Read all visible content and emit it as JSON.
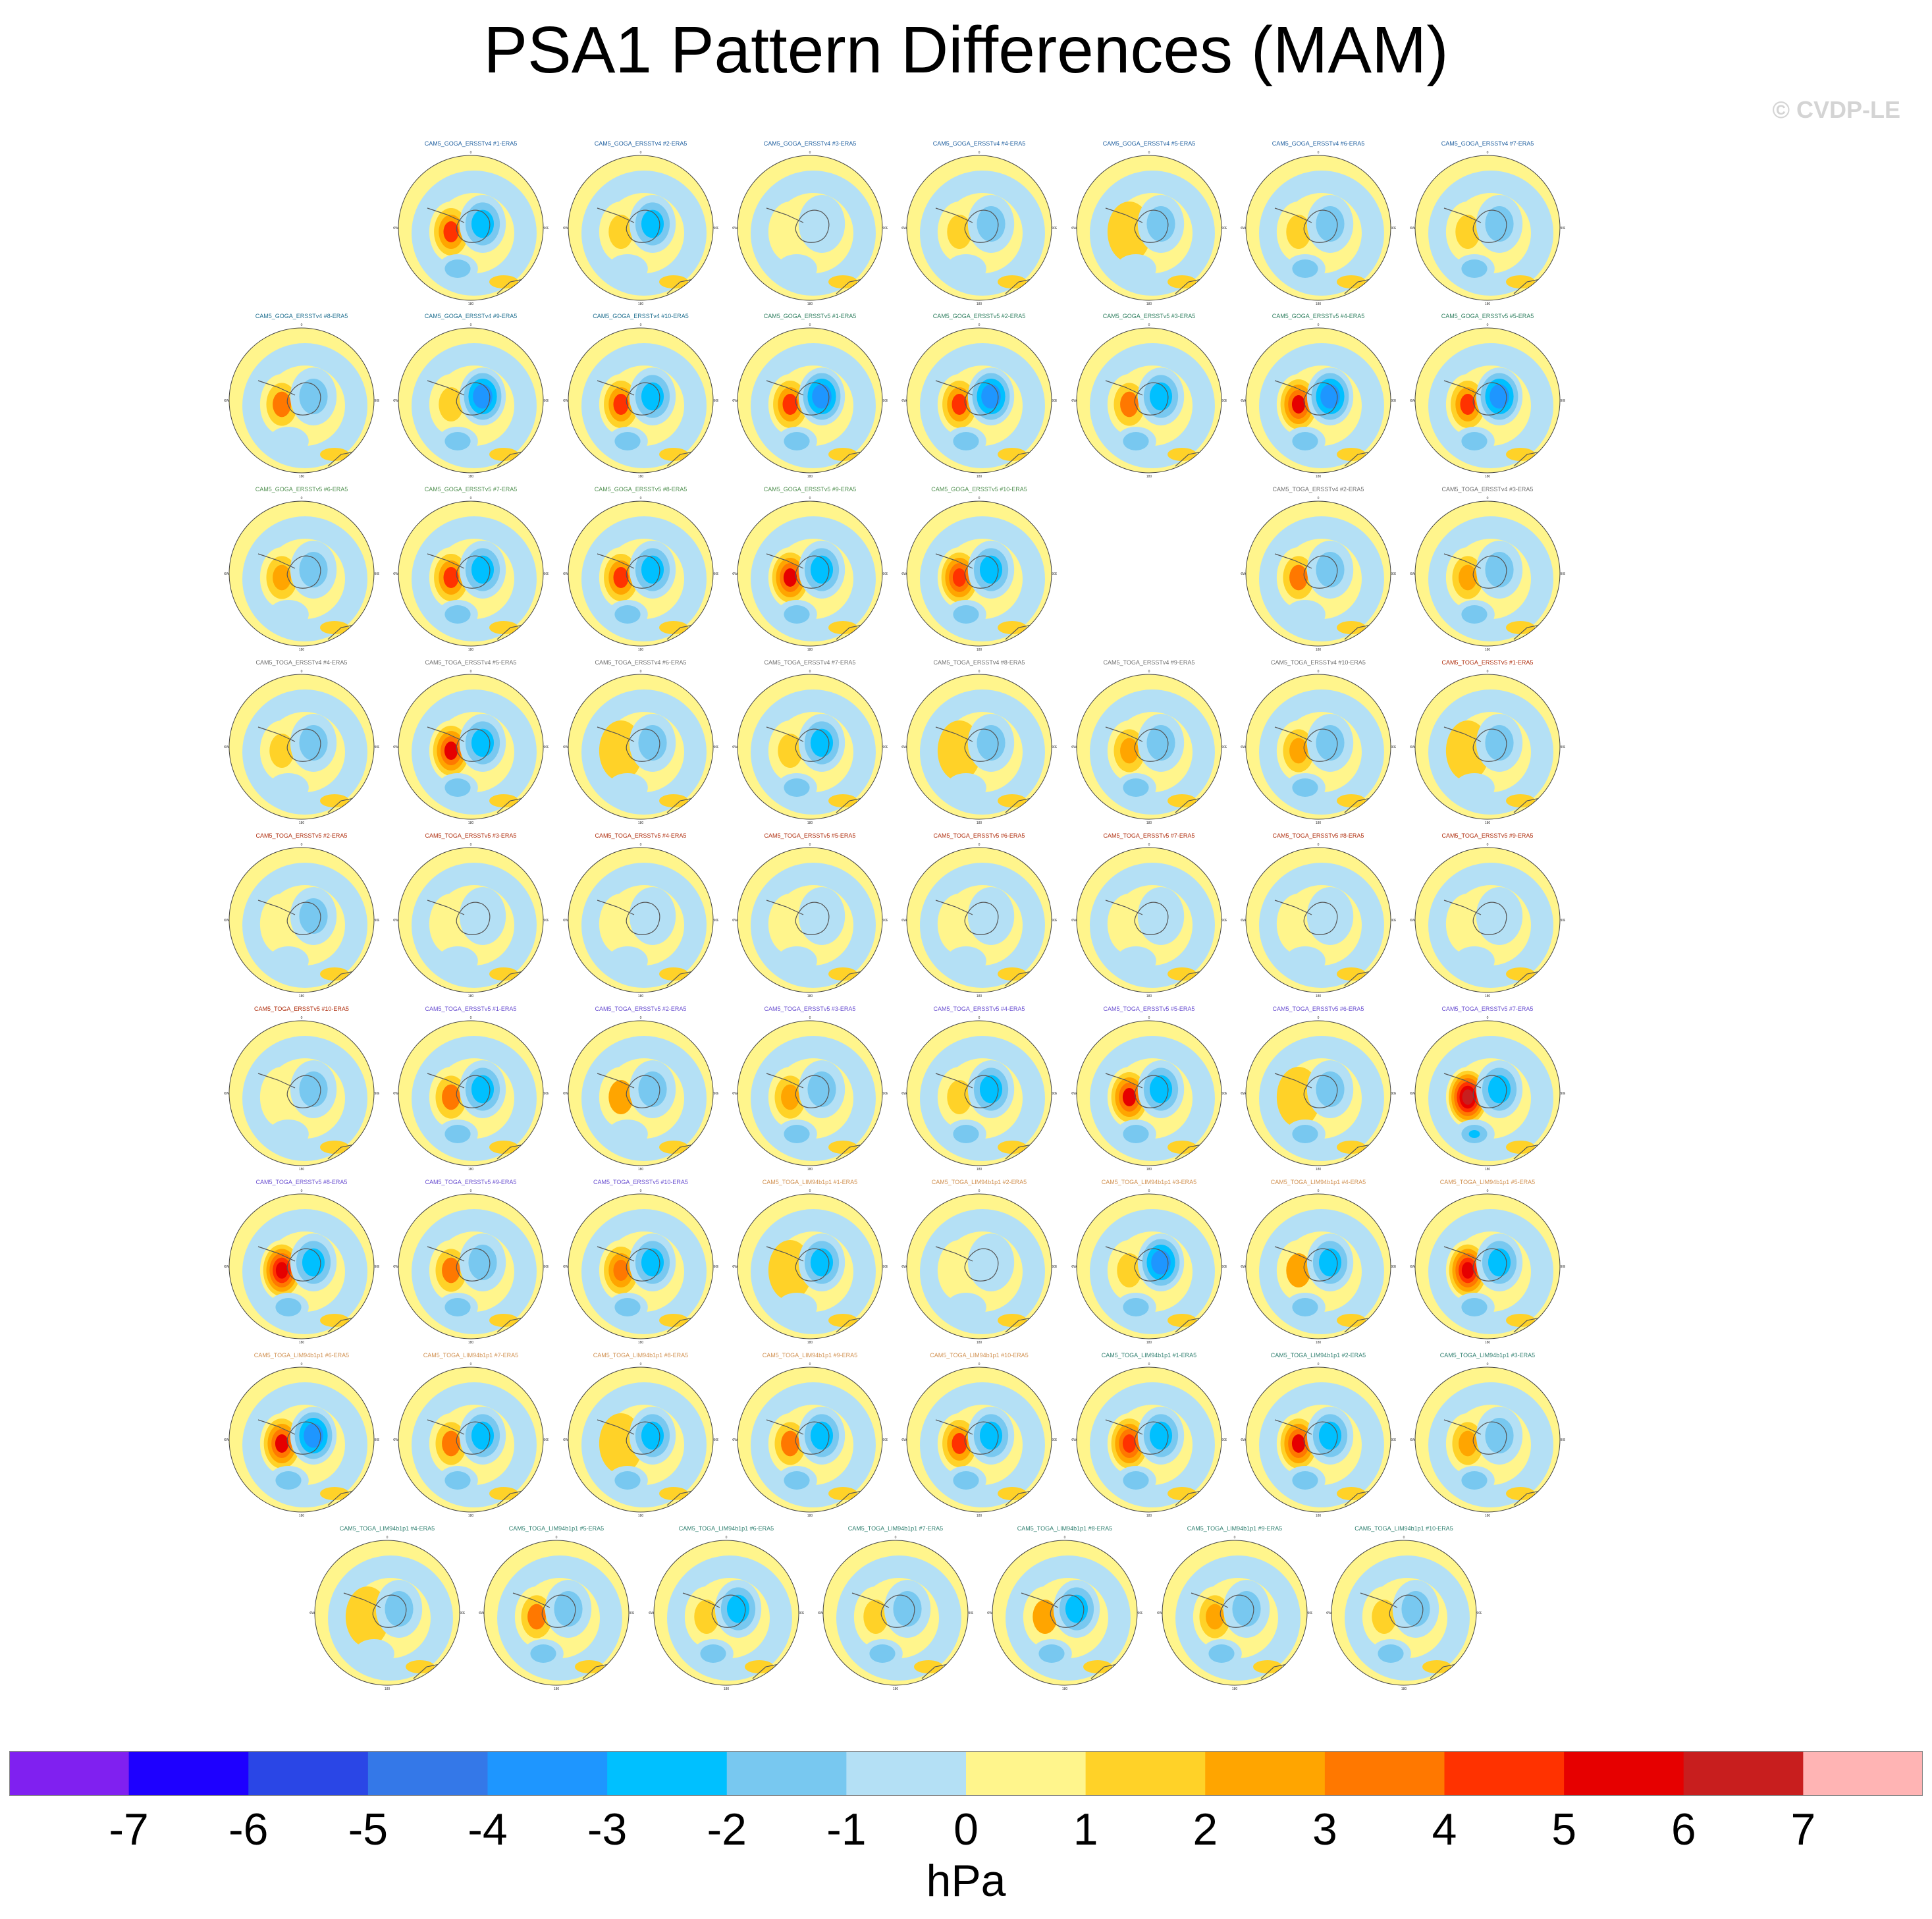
{
  "title": "PSA1 Pattern Differences (MAM)",
  "copyright": "© CVDP-LE",
  "chart_data": {
    "type": "contour-map-panels",
    "title": "PSA1 Pattern Differences (MAM)",
    "units": "hPa",
    "levels": [
      "-7",
      "-6",
      "-5",
      "-4",
      "-3",
      "-2",
      "-1",
      "0",
      "1",
      "2",
      "3",
      "4",
      "5",
      "6",
      "7"
    ],
    "colors": [
      "#8020f0",
      "#1e00ff",
      "#2a46e6",
      "#3478e8",
      "#1e96ff",
      "#00c0ff",
      "#78c8f0",
      "#b4e0f5",
      "#fff58c",
      "#ffd228",
      "#ffa500",
      "#ff7800",
      "#ff3200",
      "#e60000",
      "#c81e1e",
      "#ffb4b4"
    ],
    "grid_labels": [
      "0",
      "30E",
      "60E",
      "90E",
      "120E",
      "150E",
      "180",
      "150W",
      "120W",
      "90W",
      "60W",
      "30W"
    ],
    "panels": [
      {
        "label": "CAM5_GOGA_ERSSTv4 #1-ERA5",
        "color": "#1f5f9f",
        "anom": [
          4,
          -2.5,
          -1.5
        ]
      },
      {
        "label": "CAM5_GOGA_ERSSTv4 #2-ERA5",
        "color": "#1f5f9f",
        "anom": [
          1.5,
          -2.5,
          -1
        ]
      },
      {
        "label": "CAM5_GOGA_ERSSTv4 #3-ERA5",
        "color": "#1f5f9f",
        "anom": [
          0.5,
          -1,
          -1
        ]
      },
      {
        "label": "CAM5_GOGA_ERSSTv4 #4-ERA5",
        "color": "#1f5f9f",
        "anom": [
          1.5,
          -1.5,
          -1
        ]
      },
      {
        "label": "CAM5_GOGA_ERSSTv4 #5-ERA5",
        "color": "#1f5f9f",
        "anom": [
          1,
          -1.5,
          -1
        ]
      },
      {
        "label": "CAM5_GOGA_ERSSTv4 #6-ERA5",
        "color": "#1f5f9f",
        "anom": [
          1.5,
          -2,
          -1.5
        ]
      },
      {
        "label": "CAM5_GOGA_ERSSTv4 #7-ERA5",
        "color": "#1f5f9f",
        "anom": [
          1.5,
          -1.5,
          -1.5
        ]
      },
      {
        "label": "CAM5_GOGA_ERSSTv4 #8-ERA5",
        "color": "#1f6f8f",
        "anom": [
          3,
          -2,
          -1
        ]
      },
      {
        "label": "CAM5_GOGA_ERSSTv4 #9-ERA5",
        "color": "#1f6f8f",
        "anom": [
          1.5,
          -3.5,
          -1.5
        ]
      },
      {
        "label": "CAM5_GOGA_ERSSTv4 #10-ERA5",
        "color": "#1f6f8f",
        "anom": [
          4,
          -3,
          -1.5
        ]
      },
      {
        "label": "CAM5_GOGA_ERSSTv5 #1-ERA5",
        "color": "#2f7f5f",
        "anom": [
          4,
          -3.5,
          -1.5
        ]
      },
      {
        "label": "CAM5_GOGA_ERSSTv5 #2-ERA5",
        "color": "#2f7f5f",
        "anom": [
          4,
          -3.5,
          -2
        ]
      },
      {
        "label": "CAM5_GOGA_ERSSTv5 #3-ERA5",
        "color": "#2f7f5f",
        "anom": [
          3,
          -2.5,
          -1.5
        ]
      },
      {
        "label": "CAM5_GOGA_ERSSTv5 #4-ERA5",
        "color": "#2f7f5f",
        "anom": [
          5,
          -4,
          -2
        ]
      },
      {
        "label": "CAM5_GOGA_ERSSTv5 #5-ERA5",
        "color": "#2f7f5f",
        "anom": [
          4,
          -4,
          -2
        ]
      },
      {
        "label": "CAM5_GOGA_ERSSTv5 #6-ERA5",
        "color": "#4f8f4f",
        "anom": [
          2.5,
          -2,
          -1
        ]
      },
      {
        "label": "CAM5_GOGA_ERSSTv5 #7-ERA5",
        "color": "#4f8f4f",
        "anom": [
          4,
          -3,
          -2
        ]
      },
      {
        "label": "CAM5_GOGA_ERSSTv5 #8-ERA5",
        "color": "#4f8f4f",
        "anom": [
          4,
          -3,
          -2
        ]
      },
      {
        "label": "CAM5_GOGA_ERSSTv5 #9-ERA5",
        "color": "#4f8f4f",
        "anom": [
          5,
          -3,
          -2
        ]
      },
      {
        "label": "CAM5_GOGA_ERSSTv5 #10-ERA5",
        "color": "#4f8f4f",
        "anom": [
          4.5,
          -3,
          -2
        ]
      },
      {
        "label": "CAM5_TOGA_ERSSTv4 #2-ERA5",
        "color": "#6f6f6f",
        "anom": [
          3,
          -2,
          -1
        ]
      },
      {
        "label": "CAM5_TOGA_ERSSTv4 #3-ERA5",
        "color": "#6f6f6f",
        "anom": [
          2.5,
          -2,
          -1.5
        ]
      },
      {
        "label": "CAM5_TOGA_ERSSTv4 #4-ERA5",
        "color": "#6f6f6f",
        "anom": [
          1.5,
          -1.5,
          -1
        ]
      },
      {
        "label": "CAM5_TOGA_ERSSTv4 #5-ERA5",
        "color": "#6f6f6f",
        "anom": [
          5,
          -3,
          -2
        ]
      },
      {
        "label": "CAM5_TOGA_ERSSTv4 #6-ERA5",
        "color": "#6f6f6f",
        "anom": [
          1,
          -1.5,
          -1
        ]
      },
      {
        "label": "CAM5_TOGA_ERSSTv4 #7-ERA5",
        "color": "#6f6f6f",
        "anom": [
          1.5,
          -2.5,
          -1.5
        ]
      },
      {
        "label": "CAM5_TOGA_ERSSTv4 #8-ERA5",
        "color": "#6f6f6f",
        "anom": [
          1,
          -1.5,
          -1
        ]
      },
      {
        "label": "CAM5_TOGA_ERSSTv4 #9-ERA5",
        "color": "#6f6f6f",
        "anom": [
          2.5,
          -2,
          -1.5
        ]
      },
      {
        "label": "CAM5_TOGA_ERSSTv4 #10-ERA5",
        "color": "#6f6f6f",
        "anom": [
          2.5,
          -2,
          -2
        ]
      },
      {
        "label": "CAM5_TOGA_ERSSTv5 #1-ERA5",
        "color": "#b03010",
        "anom": [
          1,
          -1.5,
          -1
        ]
      },
      {
        "label": "CAM5_TOGA_ERSSTv5 #2-ERA5",
        "color": "#b03010",
        "anom": [
          0.5,
          -1.5,
          -1
        ]
      },
      {
        "label": "CAM5_TOGA_ERSSTv5 #3-ERA5",
        "color": "#b03010",
        "anom": [
          0.5,
          -1,
          -1
        ]
      },
      {
        "label": "CAM5_TOGA_ERSSTv5 #4-ERA5",
        "color": "#b03010",
        "anom": [
          0.5,
          -1,
          -1
        ]
      },
      {
        "label": "CAM5_TOGA_ERSSTv5 #5-ERA5",
        "color": "#b03010",
        "anom": [
          0.5,
          -1,
          -1
        ]
      },
      {
        "label": "CAM5_TOGA_ERSSTv5 #6-ERA5",
        "color": "#b03010",
        "anom": [
          0.5,
          -1,
          -1
        ]
      },
      {
        "label": "CAM5_TOGA_ERSSTv5 #7-ERA5",
        "color": "#b03010",
        "anom": [
          0.5,
          -1,
          -1
        ]
      },
      {
        "label": "CAM5_TOGA_ERSSTv5 #8-ERA5",
        "color": "#b03010",
        "anom": [
          0.5,
          -1,
          -1
        ]
      },
      {
        "label": "CAM5_TOGA_ERSSTv5 #9-ERA5",
        "color": "#b03010",
        "anom": [
          0.5,
          -1,
          -1
        ]
      },
      {
        "label": "CAM5_TOGA_ERSSTv5 #10-ERA5",
        "color": "#b03010",
        "anom": [
          0.5,
          -1.5,
          -1
        ]
      },
      {
        "label": "CAM5_TOGA_ERSSTv5 #1-ERA5",
        "color": "#6a4fd0",
        "anom": [
          3,
          -2.5,
          -1.5
        ]
      },
      {
        "label": "CAM5_TOGA_ERSSTv5 #2-ERA5",
        "color": "#6a4fd0",
        "anom": [
          2,
          -1.5,
          -1
        ]
      },
      {
        "label": "CAM5_TOGA_ERSSTv5 #3-ERA5",
        "color": "#6a4fd0",
        "anom": [
          2.5,
          -2,
          -1.5
        ]
      },
      {
        "label": "CAM5_TOGA_ERSSTv5 #4-ERA5",
        "color": "#6a4fd0",
        "anom": [
          1.5,
          -2.5,
          -1.5
        ]
      },
      {
        "label": "CAM5_TOGA_ERSSTv5 #5-ERA5",
        "color": "#6a4fd0",
        "anom": [
          5,
          -3,
          -2
        ]
      },
      {
        "label": "CAM5_TOGA_ERSSTv5 #6-ERA5",
        "color": "#6a4fd0",
        "anom": [
          1,
          -2,
          -1.5
        ]
      },
      {
        "label": "CAM5_TOGA_ERSSTv5 #7-ERA5",
        "color": "#6a4fd0",
        "anom": [
          6.5,
          -3,
          -2.5
        ]
      },
      {
        "label": "CAM5_TOGA_ERSSTv5 #8-ERA5",
        "color": "#6a4fd0",
        "anom": [
          5.5,
          -3,
          -2
        ]
      },
      {
        "label": "CAM5_TOGA_ERSSTv5 #9-ERA5",
        "color": "#6a4fd0",
        "anom": [
          3,
          -2,
          -1.5
        ]
      },
      {
        "label": "CAM5_TOGA_ERSSTv5 #10-ERA5",
        "color": "#6a4fd0",
        "anom": [
          3.5,
          -2.5,
          -1.5
        ]
      },
      {
        "label": "CAM5_TOGA_LIM94b1p1 #1-ERA5",
        "color": "#d09050",
        "anom": [
          1,
          -3,
          -1
        ]
      },
      {
        "label": "CAM5_TOGA_LIM94b1p1 #2-ERA5",
        "color": "#d09050",
        "anom": [
          0.5,
          -1,
          -1
        ]
      },
      {
        "label": "CAM5_TOGA_LIM94b1p1 #3-ERA5",
        "color": "#d09050",
        "anom": [
          1.5,
          -4,
          -1.5
        ]
      },
      {
        "label": "CAM5_TOGA_LIM94b1p1 #4-ERA5",
        "color": "#d09050",
        "anom": [
          2,
          -3,
          -1.5
        ]
      },
      {
        "label": "CAM5_TOGA_LIM94b1p1 #5-ERA5",
        "color": "#d09050",
        "anom": [
          5.5,
          -3,
          -2
        ]
      },
      {
        "label": "CAM5_TOGA_LIM94b1p1 #6-ERA5",
        "color": "#d09050",
        "anom": [
          5,
          -3.5,
          -2
        ]
      },
      {
        "label": "CAM5_TOGA_LIM94b1p1 #7-ERA5",
        "color": "#d09050",
        "anom": [
          3,
          -2.5,
          -1.5
        ]
      },
      {
        "label": "CAM5_TOGA_LIM94b1p1 #8-ERA5",
        "color": "#d09050",
        "anom": [
          1,
          -2.5,
          -1.5
        ]
      },
      {
        "label": "CAM5_TOGA_LIM94b1p1 #9-ERA5",
        "color": "#d09050",
        "anom": [
          3,
          -3,
          -1.5
        ]
      },
      {
        "label": "CAM5_TOGA_LIM94b1p1 #10-ERA5",
        "color": "#d09050",
        "anom": [
          4,
          -2.5,
          -1.5
        ]
      },
      {
        "label": "CAM5_TOGA_LIM94b1p1 #1-ERA5",
        "color": "#2f7f6f",
        "anom": [
          4.5,
          -3,
          -2
        ]
      },
      {
        "label": "CAM5_TOGA_LIM94b1p1 #2-ERA5",
        "color": "#2f7f6f",
        "anom": [
          5,
          -3,
          -2
        ]
      },
      {
        "label": "CAM5_TOGA_LIM94b1p1 #3-ERA5",
        "color": "#2f7f6f",
        "anom": [
          2.5,
          -2,
          -1.5
        ]
      },
      {
        "label": "CAM5_TOGA_LIM94b1p1 #4-ERA5",
        "color": "#2f7f6f",
        "anom": [
          1,
          -2,
          -1
        ]
      },
      {
        "label": "CAM5_TOGA_LIM94b1p1 #5-ERA5",
        "color": "#2f7f6f",
        "anom": [
          3,
          -2,
          -1.5
        ]
      },
      {
        "label": "CAM5_TOGA_LIM94b1p1 #6-ERA5",
        "color": "#2f7f6f",
        "anom": [
          1.5,
          -3,
          -1.5
        ]
      },
      {
        "label": "CAM5_TOGA_LIM94b1p1 #7-ERA5",
        "color": "#2f7f6f",
        "anom": [
          1.5,
          -2,
          -1.5
        ]
      },
      {
        "label": "CAM5_TOGA_LIM94b1p1 #8-ERA5",
        "color": "#2f7f6f",
        "anom": [
          2,
          -2.5,
          -1.5
        ]
      },
      {
        "label": "CAM5_TOGA_LIM94b1p1 #9-ERA5",
        "color": "#2f7f6f",
        "anom": [
          2.5,
          -2,
          -1.5
        ]
      },
      {
        "label": "CAM5_TOGA_LIM94b1p1 #10-ERA5",
        "color": "#2f7f6f",
        "anom": [
          1.5,
          -2,
          -1.5
        ]
      }
    ]
  }
}
